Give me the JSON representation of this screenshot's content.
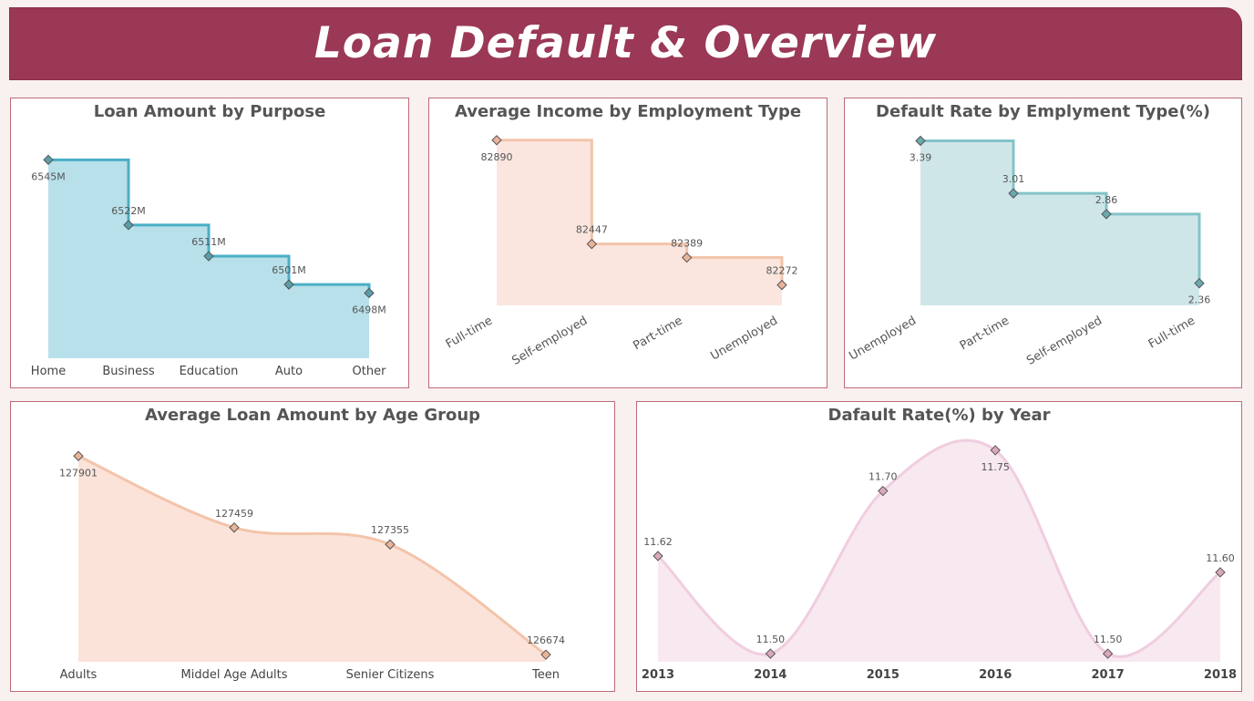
{
  "header": {
    "title": "Loan Default & Overview"
  },
  "chart_data": [
    {
      "id": "c1",
      "type": "area",
      "interpolation": "step",
      "title": "Loan Amount by Purpose",
      "categories": [
        "Home",
        "Business",
        "Education",
        "Auto",
        "Other"
      ],
      "values": [
        6545,
        6522,
        6511,
        6501,
        6498
      ],
      "labels": [
        "6545M",
        "6522M",
        "6511M",
        "6501M",
        "6498M"
      ],
      "unit": "M",
      "ylim": [
        6475,
        6548
      ],
      "label_pos": [
        "below",
        "above",
        "above",
        "above",
        "below"
      ],
      "color_line": "#4aaec6",
      "color_fill": "#b8e0ea",
      "color_marker": "#5a9ea8",
      "xlabel_rotated": false,
      "grid": false
    },
    {
      "id": "c2",
      "type": "area",
      "interpolation": "step",
      "title": "Average Income by Employment Type",
      "categories": [
        "Full-time",
        "Self-employed",
        "Part-time",
        "Unemployed"
      ],
      "values": [
        82890,
        82447,
        82389,
        82272
      ],
      "labels": [
        "82890",
        "82447",
        "82389",
        "82272"
      ],
      "ylim": [
        82185,
        82893
      ],
      "label_pos": [
        "below",
        "above",
        "above",
        "above"
      ],
      "color_line": "#f3c4aa",
      "color_fill": "#fae6df",
      "color_marker": "#e8b49a",
      "xlabel_rotated": true,
      "grid": false
    },
    {
      "id": "c3",
      "type": "area",
      "interpolation": "step",
      "title": "Default Rate by Emplyment Type(%)",
      "categories": [
        "Unemployed",
        "Part-time",
        "Self-employed",
        "Full-time"
      ],
      "values": [
        3.39,
        3.01,
        2.86,
        2.36
      ],
      "labels": [
        "3.39",
        "3.01",
        "2.86",
        "2.36"
      ],
      "ylim": [
        2.2,
        3.4
      ],
      "label_pos": [
        "below",
        "above",
        "above",
        "below"
      ],
      "color_line": "#84c3c7",
      "color_fill": "#cfe6e9",
      "color_marker": "#6aa9ae",
      "xlabel_rotated": true,
      "grid": false
    },
    {
      "id": "c4",
      "type": "area",
      "interpolation": "smooth",
      "title": "Average Loan Amount by Age Group",
      "categories": [
        "Adults",
        "Middel Age Adults",
        "Senier Citizens",
        "Teen"
      ],
      "values": [
        127901,
        127459,
        127355,
        126674
      ],
      "labels": [
        "127901",
        "127459",
        "127355",
        "126674"
      ],
      "ylim": [
        126630,
        127925
      ],
      "label_pos": [
        "below",
        "above",
        "above",
        "above"
      ],
      "color_line": "#f3c4aa",
      "color_fill": "#fbe3da",
      "color_marker": "#e8b49a",
      "xlabel_rotated": false,
      "grid": false
    },
    {
      "id": "c5",
      "type": "area",
      "interpolation": "smooth",
      "title": "Dafault Rate(%) by Year",
      "categories": [
        "2013",
        "2014",
        "2015",
        "2016",
        "2017",
        "2018"
      ],
      "values": [
        11.62,
        11.5,
        11.7,
        11.75,
        11.5,
        11.6
      ],
      "labels": [
        "11.62",
        "11.50",
        "11.70",
        "11.75",
        "11.50",
        "11.60"
      ],
      "ylim": [
        11.49,
        11.76
      ],
      "label_pos": [
        "above",
        "above",
        "above",
        "below",
        "above",
        "above"
      ],
      "color_line": "#f0cde0",
      "color_fill": "#f8e8f0",
      "color_marker": "#d9a8bb",
      "xlabel_rotated": false,
      "grid": false
    }
  ]
}
